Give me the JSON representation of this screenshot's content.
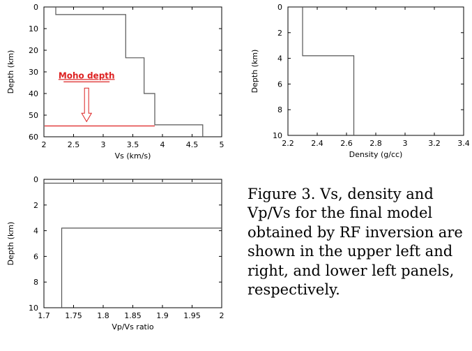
{
  "caption": "Figure 3. Vs, density and Vp/Vs for the final model obtained by RF inversion are shown in the upper left and right, and lower left panels, respectively.",
  "chart_data": [
    {
      "type": "line",
      "xlabel": "Vs (km/s)",
      "ylabel": "Depth (km)",
      "xlim": [
        2,
        5
      ],
      "ylim": [
        0,
        60
      ],
      "y_inverted": true,
      "xticks": [
        "2",
        "2.5",
        "3",
        "3.5",
        "4",
        "4.5",
        "5"
      ],
      "yticks": [
        "0",
        "10",
        "20",
        "30",
        "40",
        "50",
        "60"
      ],
      "series": [
        {
          "color": "#555555",
          "x": [
            2.2,
            2.2,
            3.38,
            3.38,
            3.69,
            3.69,
            3.87,
            3.87,
            4.68,
            4.68
          ],
          "y": [
            0,
            3.5,
            3.5,
            23.5,
            23.5,
            40,
            40,
            54.5,
            54.5,
            60
          ]
        }
      ],
      "annotation": {
        "text": "Moho depth",
        "color": "#dd2222",
        "moho_depth": 55,
        "arrow_x": 2.72,
        "arrow_from_depth": 37.5,
        "arrow_to_depth": 53
      }
    },
    {
      "type": "line",
      "xlabel": "Density (g/cc)",
      "ylabel": "Depth (km)",
      "xlim": [
        2.2,
        3.4
      ],
      "ylim": [
        0,
        10
      ],
      "y_inverted": true,
      "xticks": [
        "2.2",
        "2.4",
        "2.6",
        "2.8",
        "3",
        "3.2",
        "3.4"
      ],
      "yticks": [
        "0",
        "2",
        "4",
        "6",
        "8",
        "10"
      ],
      "series": [
        {
          "color": "#555555",
          "x": [
            2.3,
            2.3,
            2.65,
            2.65
          ],
          "y": [
            0,
            3.8,
            3.8,
            10
          ]
        }
      ]
    },
    {
      "type": "line",
      "xlabel": "Vp/Vs ratio",
      "ylabel": "Depth (km)",
      "xlim": [
        1.7,
        2.0
      ],
      "ylim": [
        0,
        10
      ],
      "y_inverted": true,
      "xticks": [
        "1.7",
        "1.75",
        "1.8",
        "1.85",
        "1.9",
        "1.95",
        "2"
      ],
      "yticks": [
        "0",
        "2",
        "4",
        "6",
        "8",
        "10"
      ],
      "series": [
        {
          "color": "#555555",
          "x": [
            2.0,
            1.7,
            1.7,
            2.0
          ],
          "y": [
            0.3,
            0.3,
            0.3,
            0.3
          ]
        },
        {
          "color": "#555555",
          "x": [
            1.73,
            1.73,
            2.0
          ],
          "y": [
            10,
            3.8,
            3.8
          ]
        }
      ]
    }
  ]
}
